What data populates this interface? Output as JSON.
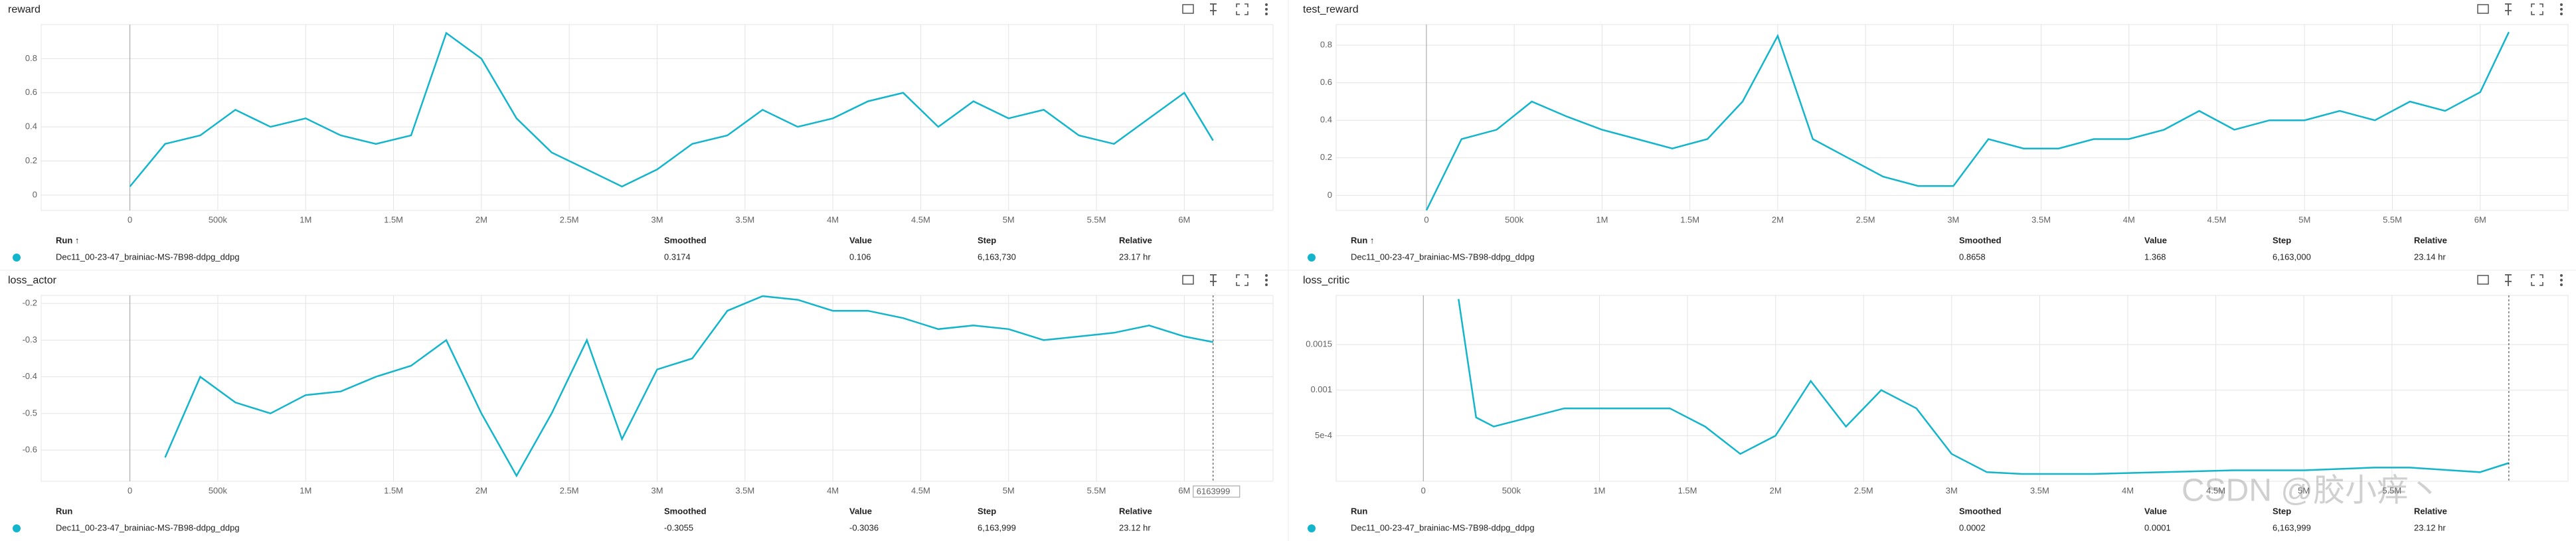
{
  "chart_data": [
    {
      "type": "line",
      "title": "reward",
      "x": [
        0,
        200000,
        400000,
        600000,
        800000,
        1000000,
        1200000,
        1400000,
        1600000,
        1800000,
        2000000,
        2200000,
        2400000,
        2600000,
        2800000,
        3000000,
        3200000,
        3400000,
        3600000,
        3800000,
        4000000,
        4200000,
        4400000,
        4600000,
        4800000,
        5000000,
        5200000,
        5400000,
        5600000,
        5800000,
        6000000,
        6163730
      ],
      "series": [
        {
          "name": "Dec11_00-23-47_brainiac-MS-7B98-ddpg_ddpg",
          "color": "#12b5cb",
          "values": [
            0.05,
            0.3,
            0.35,
            0.5,
            0.4,
            0.45,
            0.35,
            0.3,
            0.35,
            0.95,
            0.8,
            0.45,
            0.25,
            0.15,
            0.05,
            0.15,
            0.3,
            0.35,
            0.5,
            0.4,
            0.45,
            0.55,
            0.6,
            0.4,
            0.55,
            0.45,
            0.5,
            0.35,
            0.3,
            0.45,
            0.6,
            0.32
          ]
        }
      ],
      "xlim": [
        -505000,
        6505000
      ],
      "ylim": [
        -0.09,
        1.0
      ],
      "xticks": [
        0,
        {
          "value": 500000,
          "label": "500k"
        },
        {
          "value": 1000000,
          "label": "1M"
        },
        {
          "value": 1500000,
          "label": "1.5M"
        },
        {
          "value": 2000000,
          "label": "2M"
        },
        {
          "value": 2500000,
          "label": "2.5M"
        },
        {
          "value": 3000000,
          "label": "3M"
        },
        {
          "value": 3500000,
          "label": "3.5M"
        },
        {
          "value": 4000000,
          "label": "4M"
        },
        {
          "value": 4500000,
          "label": "4.5M"
        },
        {
          "value": 5000000,
          "label": "5M"
        },
        {
          "value": 5500000,
          "label": "5.5M"
        },
        {
          "value": 6000000,
          "label": "6M"
        }
      ],
      "yticks": [
        0,
        0.2,
        0.4,
        0.6,
        0.8
      ],
      "grid": true,
      "table": {
        "headers": [
          "Run ↑",
          "Smoothed",
          "Value",
          "Step",
          "Relative"
        ],
        "row": [
          "Dec11_00-23-47_brainiac-MS-7B98-ddpg_ddpg",
          "0.3174",
          "0.106",
          "6,163,730",
          "23.17 hr"
        ]
      }
    },
    {
      "type": "line",
      "title": "test_reward",
      "x": [
        0,
        200000,
        400000,
        600000,
        800000,
        1000000,
        1200000,
        1400000,
        1600000,
        1800000,
        2000000,
        2200000,
        2400000,
        2600000,
        2800000,
        3000000,
        3200000,
        3400000,
        3600000,
        3800000,
        4000000,
        4200000,
        4400000,
        4600000,
        4800000,
        5000000,
        5200000,
        5400000,
        5600000,
        5800000,
        6000000,
        6163000
      ],
      "series": [
        {
          "name": "Dec11_00-23-47_brainiac-MS-7B98-ddpg_ddpg",
          "color": "#12b5cb",
          "values": [
            -0.08,
            0.3,
            0.35,
            0.5,
            0.42,
            0.35,
            0.3,
            0.25,
            0.3,
            0.5,
            0.85,
            0.3,
            0.2,
            0.1,
            0.05,
            0.05,
            0.3,
            0.25,
            0.25,
            0.3,
            0.3,
            0.35,
            0.45,
            0.35,
            0.4,
            0.4,
            0.45,
            0.4,
            0.5,
            0.45,
            0.55,
            0.87
          ]
        }
      ],
      "xlim": [
        -514000,
        6500000
      ],
      "ylim": [
        -0.08,
        0.91
      ],
      "xticks": [
        0,
        {
          "value": 500000,
          "label": "500k"
        },
        {
          "value": 1000000,
          "label": "1M"
        },
        {
          "value": 1500000,
          "label": "1.5M"
        },
        {
          "value": 2000000,
          "label": "2M"
        },
        {
          "value": 2500000,
          "label": "2.5M"
        },
        {
          "value": 3000000,
          "label": "3M"
        },
        {
          "value": 3500000,
          "label": "3.5M"
        },
        {
          "value": 4000000,
          "label": "4M"
        },
        {
          "value": 4500000,
          "label": "4.5M"
        },
        {
          "value": 5000000,
          "label": "5M"
        },
        {
          "value": 5500000,
          "label": "5.5M"
        },
        {
          "value": 6000000,
          "label": "6M"
        }
      ],
      "yticks": [
        0,
        0.2,
        0.4,
        0.6,
        0.8
      ],
      "grid": true,
      "table": {
        "headers": [
          "Run ↑",
          "Smoothed",
          "Value",
          "Step",
          "Relative"
        ],
        "row": [
          "Dec11_00-23-47_brainiac-MS-7B98-ddpg_ddpg",
          "0.8658",
          "1.368",
          "6,163,000",
          "23.14 hr"
        ]
      }
    },
    {
      "type": "line",
      "title": "loss_actor",
      "x": [
        200000,
        400000,
        600000,
        800000,
        1000000,
        1200000,
        1400000,
        1600000,
        1800000,
        2000000,
        2200000,
        2400000,
        2600000,
        2800000,
        3000000,
        3200000,
        3400000,
        3600000,
        3800000,
        4000000,
        4200000,
        4400000,
        4600000,
        4800000,
        5000000,
        5200000,
        5400000,
        5600000,
        5800000,
        6000000,
        6163999
      ],
      "series": [
        {
          "name": "Dec11_00-23-47_brainiac-MS-7B98-ddpg_ddpg",
          "color": "#12b5cb",
          "values": [
            -0.62,
            -0.4,
            -0.47,
            -0.5,
            -0.45,
            -0.44,
            -0.4,
            -0.37,
            -0.3,
            -0.5,
            -0.67,
            -0.5,
            -0.3,
            -0.57,
            -0.38,
            -0.35,
            -0.22,
            -0.18,
            -0.19,
            -0.22,
            -0.22,
            -0.24,
            -0.27,
            -0.26,
            -0.27,
            -0.3,
            -0.29,
            -0.28,
            -0.26,
            -0.29,
            -0.3055
          ]
        }
      ],
      "xlim": [
        -505000,
        6505000
      ],
      "ylim": [
        -0.685,
        -0.178
      ],
      "xticks": [
        0,
        {
          "value": 500000,
          "label": "500k"
        },
        {
          "value": 1000000,
          "label": "1M"
        },
        {
          "value": 1500000,
          "label": "1.5M"
        },
        {
          "value": 2000000,
          "label": "2M"
        },
        {
          "value": 2500000,
          "label": "2.5M"
        },
        {
          "value": 3000000,
          "label": "3M"
        },
        {
          "value": 3500000,
          "label": "3.5M"
        },
        {
          "value": 4000000,
          "label": "4M"
        },
        {
          "value": 4500000,
          "label": "4.5M"
        },
        {
          "value": 5000000,
          "label": "5M"
        },
        {
          "value": 5500000,
          "label": "5.5M"
        },
        {
          "value": 6000000,
          "label": "6M"
        }
      ],
      "yticks": [
        -0.6,
        -0.5,
        -0.4,
        -0.3,
        -0.2
      ],
      "grid": true,
      "cursor_label": "6163999",
      "table": {
        "headers": [
          "Run",
          "Smoothed",
          "Value",
          "Step",
          "Relative"
        ],
        "row": [
          "Dec11_00-23-47_brainiac-MS-7B98-ddpg_ddpg",
          "-0.3055",
          "-0.3036",
          "6,163,999",
          "23.12 hr"
        ]
      }
    },
    {
      "type": "line",
      "title": "loss_critic",
      "x": [
        200000,
        300000,
        400000,
        600000,
        800000,
        1000000,
        1200000,
        1400000,
        1600000,
        1800000,
        2000000,
        2200000,
        2400000,
        2600000,
        2800000,
        3000000,
        3200000,
        3400000,
        3800000,
        4200000,
        4600000,
        5000000,
        5400000,
        5600000,
        6000000,
        6163999
      ],
      "series": [
        {
          "name": "Dec11_00-23-47_brainiac-MS-7B98-ddpg_ddpg",
          "color": "#12b5cb",
          "values": [
            0.002,
            0.0007,
            0.0006,
            0.0007,
            0.0008,
            0.0008,
            0.0008,
            0.0008,
            0.0006,
            0.0003,
            0.0005,
            0.0011,
            0.0006,
            0.001,
            0.0008,
            0.0003,
            0.0001,
            8e-05,
            8e-05,
            0.0001,
            0.00012,
            0.00012,
            0.00015,
            0.00015,
            0.0001,
            0.0002
          ]
        }
      ],
      "xlim": [
        -495000,
        6500000
      ],
      "ylim": [
        0,
        0.00204
      ],
      "xticks": [
        0,
        {
          "value": 500000,
          "label": "500k"
        },
        {
          "value": 1000000,
          "label": "1M"
        },
        {
          "value": 1500000,
          "label": "1.5M"
        },
        {
          "value": 2000000,
          "label": "2M"
        },
        {
          "value": 2500000,
          "label": "2.5M"
        },
        {
          "value": 3000000,
          "label": "3M"
        },
        {
          "value": 3500000,
          "label": "3.5M"
        },
        {
          "value": 4000000,
          "label": "4M"
        },
        {
          "value": 4500000,
          "label": "4.5M"
        },
        {
          "value": 5000000,
          "label": "5M"
        },
        {
          "value": 5500000,
          "label": "5.5M"
        }
      ],
      "yticks": [
        {
          "value": 0.0005,
          "label": "5e-4"
        },
        0.001,
        0.0015
      ],
      "grid": true,
      "table": {
        "headers": [
          "Run",
          "Smoothed",
          "Value",
          "Step",
          "Relative"
        ],
        "row": [
          "Dec11_00-23-47_brainiac-MS-7B98-ddpg_ddpg",
          "0.0002",
          "0.0001",
          "6,163,999",
          "23.12 hr"
        ]
      }
    }
  ],
  "watermark": "CSDN @胶小痒丶"
}
